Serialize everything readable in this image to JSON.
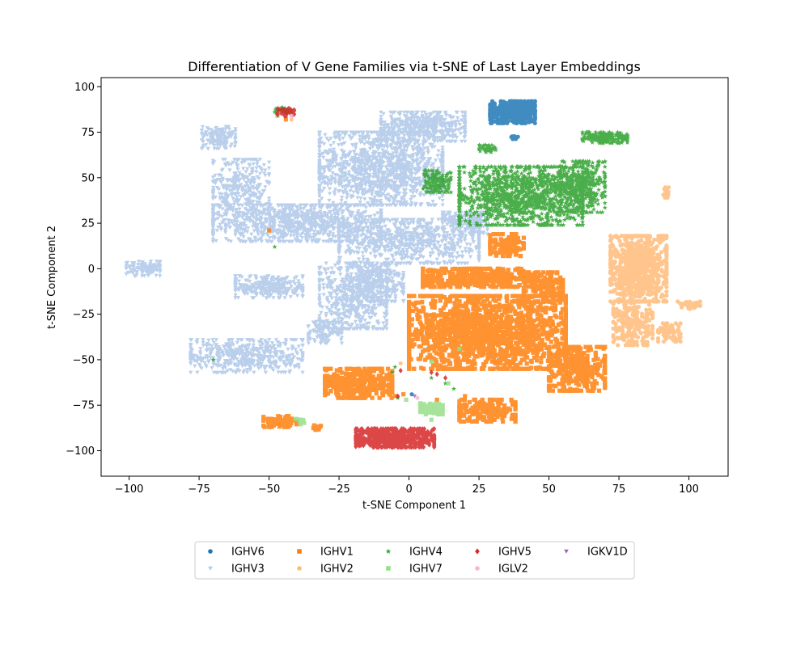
{
  "chart_data": {
    "type": "scatter",
    "title": "Differentiation of V Gene Families via t-SNE of Last Layer Embeddings",
    "xlabel": "t-SNE Component 1",
    "ylabel": "t-SNE Component 2",
    "xlim": [
      -110,
      114
    ],
    "ylim": [
      -114,
      105
    ],
    "xticks": [
      -100,
      -75,
      -50,
      -25,
      0,
      25,
      50,
      75,
      100
    ],
    "yticks": [
      -100,
      -75,
      -50,
      -25,
      0,
      25,
      50,
      75,
      100
    ],
    "grid": false,
    "legend_position": "bottom-center",
    "legend_columns": 5,
    "series": [
      {
        "name": "IGHV6",
        "color": "#1f77b4",
        "marker": "circle",
        "clusters": [
          {
            "center": [
              37,
              86
            ],
            "spread": [
              8,
              6
            ],
            "count": 450
          },
          {
            "center": [
              38,
              72
            ],
            "spread": [
              1.5,
              0.8
            ],
            "count": 12
          }
        ],
        "points": [
          [
            1,
            -69
          ]
        ]
      },
      {
        "name": "IGHV3",
        "color": "#aec7e8",
        "marker": "triangle-down",
        "clusters": [
          {
            "center": [
              -10,
              55
            ],
            "spread": [
              22,
              20
            ],
            "count": 1400
          },
          {
            "center": [
              5,
              78
            ],
            "spread": [
              15,
              8
            ],
            "count": 500
          },
          {
            "center": [
              -40,
              25
            ],
            "spread": [
              30,
              10
            ],
            "count": 1000
          },
          {
            "center": [
              0,
              15
            ],
            "spread": [
              25,
              12
            ],
            "count": 800
          },
          {
            "center": [
              -60,
              45
            ],
            "spread": [
              10,
              15
            ],
            "count": 350
          },
          {
            "center": [
              -68,
              72
            ],
            "spread": [
              6,
              6
            ],
            "count": 150
          },
          {
            "center": [
              -95,
              0
            ],
            "spread": [
              6,
              4
            ],
            "count": 100
          },
          {
            "center": [
              -50,
              -10
            ],
            "spread": [
              12,
              6
            ],
            "count": 300
          },
          {
            "center": [
              -20,
              -15
            ],
            "spread": [
              12,
              18
            ],
            "count": 600
          },
          {
            "center": [
              -58,
              -48
            ],
            "spread": [
              20,
              9
            ],
            "count": 500
          },
          {
            "center": [
              -10,
              -8
            ],
            "spread": [
              8,
              10
            ],
            "count": 250
          },
          {
            "center": [
              20,
              25
            ],
            "spread": [
              8,
              6
            ],
            "count": 200
          },
          {
            "center": [
              -30,
              -35
            ],
            "spread": [
              6,
              6
            ],
            "count": 120
          }
        ],
        "points": []
      },
      {
        "name": "IGHV1",
        "color": "#ff7f0e",
        "marker": "square",
        "clusters": [
          {
            "center": [
              28,
              -35
            ],
            "spread": [
              28,
              20
            ],
            "count": 1600
          },
          {
            "center": [
              25,
              -5
            ],
            "spread": [
              20,
              5
            ],
            "count": 400
          },
          {
            "center": [
              48,
              -10
            ],
            "spread": [
              7,
              8
            ],
            "count": 160
          },
          {
            "center": [
              -18,
              -63
            ],
            "spread": [
              12,
              8
            ],
            "count": 400
          },
          {
            "center": [
              60,
              -55
            ],
            "spread": [
              10,
              12
            ],
            "count": 350
          },
          {
            "center": [
              28,
              -78
            ],
            "spread": [
              10,
              6
            ],
            "count": 200
          },
          {
            "center": [
              -46,
              -84
            ],
            "spread": [
              6,
              3
            ],
            "count": 80
          },
          {
            "center": [
              35,
              13
            ],
            "spread": [
              6,
              6
            ],
            "count": 120
          },
          {
            "center": [
              -33,
              -87
            ],
            "spread": [
              1.5,
              1.5
            ],
            "count": 14
          }
        ],
        "points": [
          [
            -50,
            21
          ],
          [
            -44,
            82
          ],
          [
            -5,
            -70
          ],
          [
            -2,
            -69
          ],
          [
            10,
            -72
          ],
          [
            20,
            -70
          ]
        ]
      },
      {
        "name": "IGHV2",
        "color": "#ffbb78",
        "marker": "circle",
        "clusters": [
          {
            "center": [
              82,
              0
            ],
            "spread": [
              10,
              18
            ],
            "count": 800
          },
          {
            "center": [
              80,
              -30
            ],
            "spread": [
              7,
              12
            ],
            "count": 250
          },
          {
            "center": [
              93,
              -35
            ],
            "spread": [
              4,
              5
            ],
            "count": 70
          },
          {
            "center": [
              100,
              -20
            ],
            "spread": [
              4,
              2
            ],
            "count": 45
          },
          {
            "center": [
              92,
              42
            ],
            "spread": [
              1.2,
              3
            ],
            "count": 18
          }
        ],
        "points": [
          [
            -42,
            82
          ],
          [
            -3,
            -52
          ]
        ]
      },
      {
        "name": "IGHV4",
        "color": "#2ca02c",
        "marker": "star",
        "clusters": [
          {
            "center": [
              40,
              40
            ],
            "spread": [
              22,
              16
            ],
            "count": 1300
          },
          {
            "center": [
              62,
              45
            ],
            "spread": [
              8,
              14
            ],
            "count": 400
          },
          {
            "center": [
              70,
              72
            ],
            "spread": [
              8,
              3
            ],
            "count": 200
          },
          {
            "center": [
              10,
              48
            ],
            "spread": [
              5,
              6
            ],
            "count": 150
          },
          {
            "center": [
              28,
              66
            ],
            "spread": [
              3,
              2
            ],
            "count": 40
          },
          {
            "center": [
              -45,
              87
            ],
            "spread": [
              3,
              1.5
            ],
            "count": 30
          }
        ],
        "points": [
          [
            -48,
            12
          ],
          [
            -70,
            -50
          ],
          [
            -5,
            -54
          ],
          [
            -6,
            -57
          ],
          [
            13,
            -63
          ],
          [
            16,
            -66
          ],
          [
            8,
            -60
          ],
          [
            -4,
            -71
          ]
        ]
      },
      {
        "name": "IGHV7",
        "color": "#98df8a",
        "marker": "square",
        "clusters": [
          {
            "center": [
              8,
              -77
            ],
            "spread": [
              4,
              3
            ],
            "count": 80
          },
          {
            "center": [
              -39,
              -84
            ],
            "spread": [
              1.5,
              1.5
            ],
            "count": 10
          }
        ],
        "points": [
          [
            -47,
            84
          ],
          [
            8,
            -51
          ],
          [
            18,
            -44
          ],
          [
            14,
            -63
          ],
          [
            8,
            -83
          ],
          [
            -1,
            -72
          ]
        ]
      },
      {
        "name": "IGHV5",
        "color": "#d62728",
        "marker": "diamond",
        "clusters": [
          {
            "center": [
              -5,
              -93
            ],
            "spread": [
              14,
              5
            ],
            "count": 600
          },
          {
            "center": [
              -44,
              86
            ],
            "spread": [
              3,
              2
            ],
            "count": 40
          }
        ],
        "points": [
          [
            -3,
            -56
          ],
          [
            8,
            -57
          ],
          [
            10,
            -58
          ],
          [
            -4,
            -70
          ],
          [
            13,
            -60
          ]
        ]
      },
      {
        "name": "IGLV2",
        "color": "#f7b6d2",
        "marker": "circle",
        "clusters": [],
        "points": [
          [
            3,
            -71
          ],
          [
            -42,
            84
          ]
        ]
      },
      {
        "name": "IGKV1D",
        "color": "#9467bd",
        "marker": "triangle-down",
        "clusters": [],
        "points": [
          [
            2,
            -70
          ]
        ]
      }
    ]
  }
}
